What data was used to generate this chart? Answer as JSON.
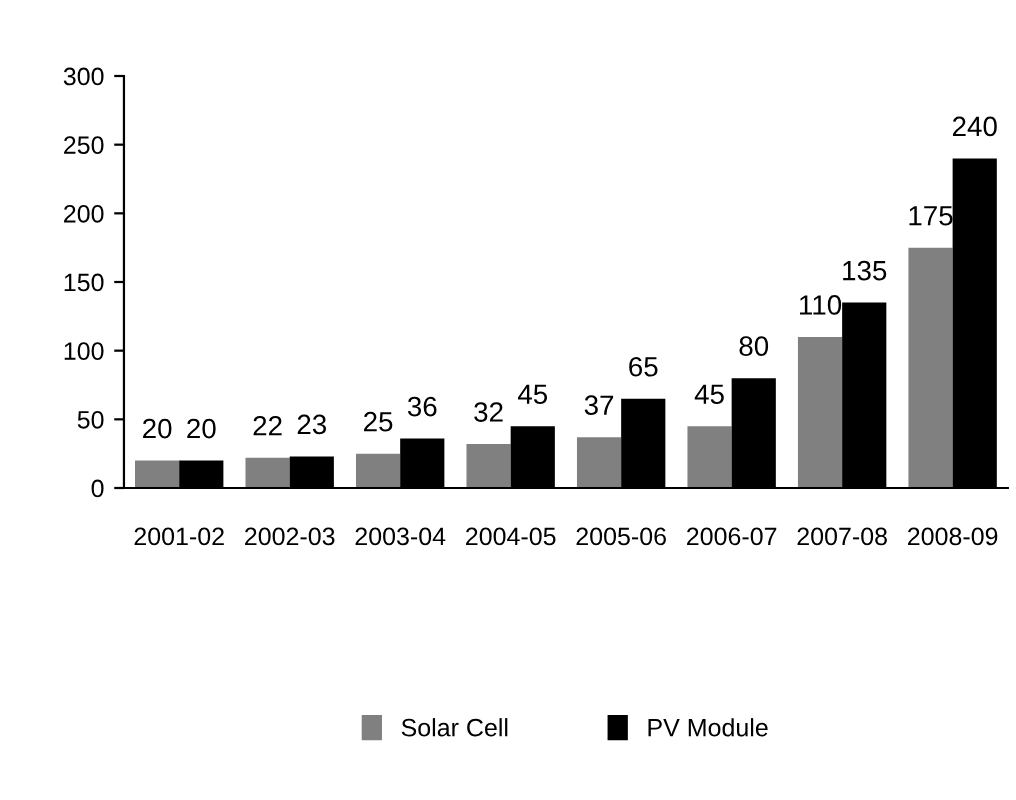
{
  "chart_data": {
    "type": "bar",
    "categories": [
      "2001-02",
      "2002-03",
      "2003-04",
      "2004-05",
      "2005-06",
      "2006-07",
      "2007-08",
      "2008-09"
    ],
    "series": [
      {
        "name": "Solar Cell",
        "color": "#808080",
        "values": [
          20,
          22,
          25,
          32,
          37,
          45,
          110,
          175
        ]
      },
      {
        "name": "PV Module",
        "color": "#000000",
        "values": [
          20,
          23,
          36,
          45,
          65,
          80,
          135,
          240
        ]
      }
    ],
    "ylim": [
      0,
      300
    ],
    "yticks": [
      0,
      50,
      100,
      150,
      200,
      250,
      300
    ],
    "data_labels": true,
    "grid": false,
    "legend": "bottom"
  }
}
